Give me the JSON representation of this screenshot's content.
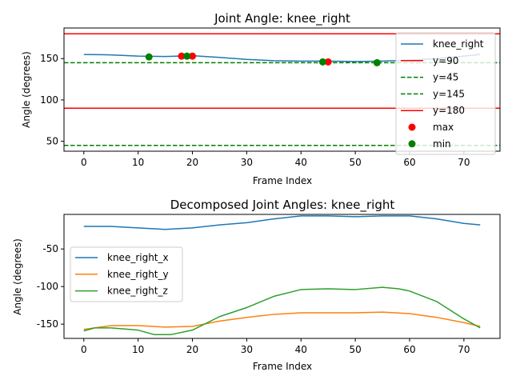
{
  "chart_data": [
    {
      "type": "line",
      "title": "Joint Angle: knee_right",
      "xlabel": "Frame Index",
      "ylabel": "Angle (degrees)",
      "xlim": [
        -3.65,
        76.65
      ],
      "ylim": [
        38,
        187
      ],
      "xticks": [
        0,
        10,
        20,
        30,
        40,
        50,
        60,
        70
      ],
      "yticks": [
        50,
        100,
        150
      ],
      "legend_position": "top-right",
      "series": [
        {
          "name": "knee_right",
          "color": "#1f77b4",
          "x": [
            0,
            5,
            10,
            15,
            20,
            25,
            30,
            35,
            40,
            45,
            50,
            55,
            60,
            65,
            70,
            73
          ],
          "y": [
            155,
            154.5,
            153,
            152.5,
            153.5,
            151.5,
            149,
            147.5,
            147,
            147,
            146.5,
            147,
            148,
            150,
            153,
            155
          ]
        }
      ],
      "hlines": [
        {
          "label": "y=90",
          "y": 90,
          "color": "#ff0000",
          "style": "solid"
        },
        {
          "label": "y=45",
          "y": 45,
          "color": "#008000",
          "style": "dashed"
        },
        {
          "label": "y=145",
          "y": 145,
          "color": "#008000",
          "style": "dashed"
        },
        {
          "label": "y=180",
          "y": 180,
          "color": "#ff0000",
          "style": "solid"
        }
      ],
      "markers": [
        {
          "name": "max",
          "color": "#ff0000",
          "x": [
            18,
            20,
            45
          ],
          "y": [
            153,
            153,
            146
          ]
        },
        {
          "name": "min",
          "color": "#008000",
          "x": [
            12,
            19,
            44,
            54
          ],
          "y": [
            152,
            153,
            146,
            145
          ]
        }
      ],
      "legend": [
        "knee_right",
        "y=90",
        "y=45",
        "y=145",
        "y=180",
        "max",
        "min"
      ]
    },
    {
      "type": "line",
      "title": "Decomposed Joint Angles: knee_right",
      "xlabel": "Frame Index",
      "ylabel": "Angle (degrees)",
      "xlim": [
        -3.65,
        76.65
      ],
      "ylim": [
        -169,
        -4
      ],
      "xticks": [
        0,
        10,
        20,
        30,
        40,
        50,
        60,
        70
      ],
      "yticks": [
        -50,
        -100,
        -150
      ],
      "legend_position": "center-left",
      "series": [
        {
          "name": "knee_right_x",
          "color": "#1f77b4",
          "x": [
            0,
            5,
            10,
            15,
            20,
            25,
            30,
            35,
            40,
            45,
            50,
            55,
            60,
            65,
            70,
            73
          ],
          "y": [
            -20,
            -20,
            -22,
            -24,
            -22,
            -18,
            -15,
            -10,
            -6,
            -6,
            -7,
            -6,
            -6,
            -10,
            -16,
            -18
          ]
        },
        {
          "name": "knee_right_y",
          "color": "#ff7f0e",
          "x": [
            0,
            5,
            10,
            15,
            20,
            25,
            30,
            35,
            40,
            45,
            50,
            55,
            60,
            65,
            70,
            73
          ],
          "y": [
            -157,
            -152,
            -152,
            -154,
            -153,
            -146,
            -141,
            -137,
            -135,
            -135,
            -135,
            -134,
            -136,
            -141,
            -148,
            -153
          ]
        },
        {
          "name": "knee_right_z",
          "color": "#2ca02c",
          "x": [
            0,
            2,
            5,
            10,
            13,
            16,
            20,
            25,
            30,
            35,
            40,
            45,
            50,
            55,
            58,
            60,
            65,
            70,
            73
          ],
          "y": [
            -159,
            -155,
            -155,
            -158,
            -164,
            -164,
            -158,
            -140,
            -128,
            -113,
            -104,
            -103,
            -104,
            -101,
            -103,
            -106,
            -120,
            -143,
            -155
          ]
        }
      ],
      "legend": [
        "knee_right_x",
        "knee_right_y",
        "knee_right_z"
      ]
    }
  ]
}
